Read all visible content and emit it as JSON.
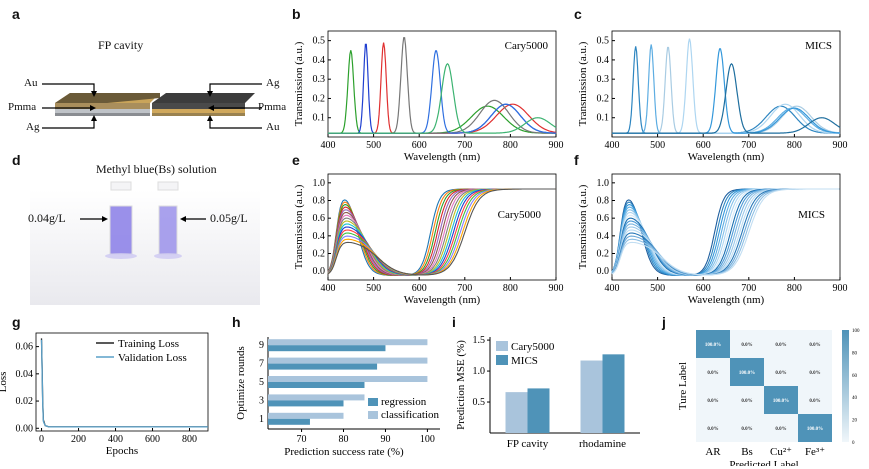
{
  "labels": {
    "a": "a",
    "b": "b",
    "c": "c",
    "d": "d",
    "e": "e",
    "f": "f",
    "g": "g",
    "h": "h",
    "i": "i",
    "j": "j"
  },
  "panel_a": {
    "title": "FP cavity",
    "left": [
      "Au",
      "Pmma",
      "Ag"
    ],
    "right": [
      "Ag",
      "Pmma",
      "Au"
    ]
  },
  "panel_d": {
    "title": "Methyl blue(Bs) solution",
    "left_conc": "0.04g/L",
    "right_conc": "0.05g/L"
  },
  "chart_data": [
    {
      "id": "b",
      "type": "line",
      "legend_text": "Cary5000",
      "xlabel": "Wavelength (nm)",
      "ylabel": "Transmission (a.u.)",
      "xlim": [
        400,
        900
      ],
      "ylim": [
        0,
        0.55
      ],
      "xticks": [
        400,
        500,
        600,
        700,
        800,
        900
      ],
      "yticks": [
        0.1,
        0.2,
        0.3,
        0.4,
        0.5
      ],
      "series": [
        {
          "color": "#2ca02c",
          "peaks": [
            [
              450,
              0.43,
              9
            ],
            [
              750,
              0.14,
              50
            ]
          ]
        },
        {
          "color": "#1f3fd0",
          "peaks": [
            [
              483,
              0.47,
              7
            ],
            [
              790,
              0.15,
              45
            ]
          ]
        },
        {
          "color": "#e03030",
          "peaks": [
            [
              522,
              0.47,
              8
            ],
            [
              805,
              0.15,
              50
            ]
          ]
        },
        {
          "color": "#777777",
          "peaks": [
            [
              567,
              0.5,
              10
            ],
            [
              765,
              0.17,
              45
            ]
          ]
        },
        {
          "color": "#3070e0",
          "peaks": [
            [
              637,
              0.43,
              13
            ],
            [
              790,
              0.15,
              45
            ]
          ]
        },
        {
          "color": "#3cb371",
          "peaks": [
            [
              662,
              0.36,
              18
            ],
            [
              860,
              0.08,
              40
            ]
          ]
        }
      ]
    },
    {
      "id": "c",
      "type": "line",
      "legend_text": "MICS",
      "xlabel": "Wavelength (nm)",
      "ylabel": "Transmission (a.u.)",
      "xlim": [
        400,
        900
      ],
      "ylim": [
        0,
        0.55
      ],
      "xticks": [
        400,
        500,
        600,
        700,
        800,
        900
      ],
      "yticks": [
        0.1,
        0.2,
        0.3,
        0.4,
        0.5
      ],
      "series": [
        {
          "color": "#2e86c1",
          "peaks": [
            [
              452,
              0.45,
              8
            ],
            [
              770,
              0.14,
              45
            ]
          ]
        },
        {
          "color": "#5dade2",
          "peaks": [
            [
              486,
              0.46,
              8
            ],
            [
              795,
              0.13,
              45
            ]
          ]
        },
        {
          "color": "#a9cce3",
          "peaks": [
            [
              523,
              0.45,
              9
            ],
            [
              805,
              0.14,
              45
            ]
          ]
        },
        {
          "color": "#aed6f1",
          "peaks": [
            [
              570,
              0.49,
              10
            ],
            [
              780,
              0.15,
              45
            ]
          ]
        },
        {
          "color": "#3498db",
          "peaks": [
            [
              637,
              0.44,
              13
            ],
            [
              800,
              0.13,
              45
            ]
          ]
        },
        {
          "color": "#1f6f9f",
          "peaks": [
            [
              662,
              0.36,
              17
            ],
            [
              860,
              0.08,
              40
            ]
          ]
        }
      ]
    },
    {
      "id": "e",
      "type": "line",
      "legend_text": "Cary5000",
      "xlabel": "Wavelength (nm)",
      "ylabel": "Transmission (a.u.)",
      "xlim": [
        400,
        900
      ],
      "ylim": [
        -0.1,
        1.1
      ],
      "xticks": [
        400,
        500,
        600,
        700,
        800,
        900
      ],
      "yticks": [
        0.0,
        0.2,
        0.4,
        0.6,
        0.8,
        1.0
      ],
      "colors": [
        "#1f77b4",
        "#ff7f0e",
        "#2ca02c",
        "#d62728",
        "#9467bd",
        "#8c564b",
        "#e377c2",
        "#7f7f7f",
        "#bcbd22",
        "#17becf",
        "#1f3fd0",
        "#ff4040",
        "#40c040",
        "#8080ff",
        "#ffa500",
        "#555555"
      ]
    },
    {
      "id": "f",
      "type": "line",
      "legend_text": "MICS",
      "xlabel": "Wavelength (nm)",
      "ylabel": "Transmission (a.u.)",
      "xlim": [
        400,
        900
      ],
      "ylim": [
        -0.1,
        1.1
      ],
      "xticks": [
        400,
        500,
        600,
        700,
        800,
        900
      ],
      "yticks": [
        0.0,
        0.2,
        0.4,
        0.6,
        0.8,
        1.0
      ],
      "colors": [
        "#1f5f9f",
        "#2e86c1",
        "#3498db",
        "#5dade2",
        "#85c1e9",
        "#aed6f1",
        "#d6eaf8",
        "#1a6fb0",
        "#4a9ad8",
        "#7ab5e0",
        "#9cc9ea",
        "#bcdcf2",
        "#2878b8",
        "#6aa8d8",
        "#8ebfe4",
        "#c2def2"
      ]
    },
    {
      "id": "g",
      "type": "line",
      "xlabel": "Epochs",
      "ylabel": "Loss",
      "xlim": [
        -30,
        900
      ],
      "ylim": [
        -0.002,
        0.07
      ],
      "xticks": [
        0,
        200,
        400,
        600,
        800
      ],
      "yticks": [
        0.0,
        0.02,
        0.04,
        0.06
      ],
      "series": [
        {
          "name": "Training Loss",
          "color": "#222222",
          "points": [
            [
              0,
              0.066
            ],
            [
              3,
              0.045
            ],
            [
              6,
              0.02
            ],
            [
              10,
              0.006
            ],
            [
              20,
              0.002
            ],
            [
              40,
              0.001
            ],
            [
              900,
              0.001
            ]
          ]
        },
        {
          "name": "Validation Loss",
          "color": "#5aa0c8",
          "points": [
            [
              0,
              0.065
            ],
            [
              3,
              0.043
            ],
            [
              6,
              0.018
            ],
            [
              10,
              0.005
            ],
            [
              20,
              0.002
            ],
            [
              40,
              0.001
            ],
            [
              900,
              0.001
            ]
          ]
        }
      ]
    },
    {
      "id": "h",
      "type": "bar",
      "orientation": "horizontal",
      "xlabel": "Prediction success rate (%)",
      "ylabel": "Optimize rounds",
      "xlim": [
        62,
        103
      ],
      "xticks": [
        70,
        80,
        90,
        100
      ],
      "categories": [
        "1",
        "3",
        "5",
        "7",
        "9"
      ],
      "ytick_labels": [
        "1",
        "3",
        "5",
        "7",
        "9"
      ],
      "series": [
        {
          "name": "regression",
          "color": "#4f93b8",
          "values": [
            72,
            80,
            85,
            88,
            90
          ]
        },
        {
          "name": "classification",
          "color": "#a9c4dc",
          "values": [
            80,
            85,
            100,
            100,
            100
          ]
        }
      ]
    },
    {
      "id": "i",
      "type": "bar",
      "ylabel": "Prediction MSE (%)",
      "ylim": [
        0,
        1.55
      ],
      "yticks": [
        0.5,
        1.0,
        1.5
      ],
      "categories": [
        "FP cavity",
        "rhodamine"
      ],
      "series": [
        {
          "name": "Cary5000",
          "color": "#a9c4dc",
          "values": [
            0.66,
            1.17
          ]
        },
        {
          "name": "MICS",
          "color": "#4f93b8",
          "values": [
            0.72,
            1.27
          ]
        }
      ]
    },
    {
      "id": "j",
      "type": "heatmap",
      "xlabel": "Predicted Label",
      "ylabel": "Ture Label",
      "xticks": [
        "AR",
        "Bs",
        "Cu²⁺",
        "Fe³⁺"
      ],
      "matrix": [
        [
          100,
          0,
          0,
          0
        ],
        [
          0,
          100,
          0,
          0
        ],
        [
          0,
          0,
          100,
          0
        ],
        [
          0,
          0,
          0,
          100
        ]
      ],
      "cell_text_diag": "100.0%",
      "cell_text_off": "0.0%",
      "colorbar": {
        "min": 0,
        "max": 100,
        "ticks": [
          0,
          20,
          40,
          60,
          80,
          100
        ],
        "low": "#f0f6fa",
        "high": "#4f93b8"
      }
    }
  ]
}
